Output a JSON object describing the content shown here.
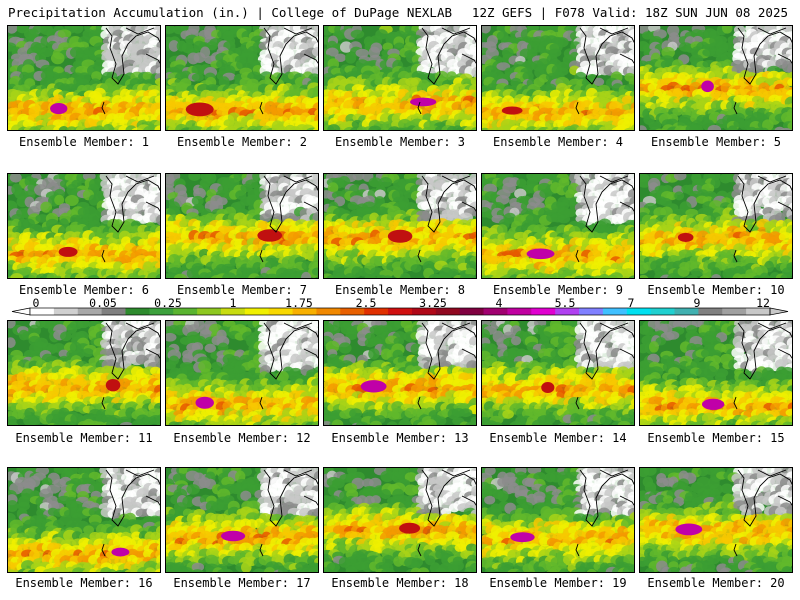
{
  "header": {
    "title": "Precipitation Accumulation (in.) | College of DuPage NEXLAB",
    "run_info": "12Z GEFS | F078 Valid: 18Z SUN JUN 08 2025"
  },
  "panels": [
    {
      "label": "Ensemble Member: 1",
      "seed": 11
    },
    {
      "label": "Ensemble Member: 2",
      "seed": 23
    },
    {
      "label": "Ensemble Member: 3",
      "seed": 37
    },
    {
      "label": "Ensemble Member: 4",
      "seed": 41
    },
    {
      "label": "Ensemble Member: 5",
      "seed": 53
    },
    {
      "label": "Ensemble Member: 6",
      "seed": 67
    },
    {
      "label": "Ensemble Member: 7",
      "seed": 71
    },
    {
      "label": "Ensemble Member: 8",
      "seed": 83
    },
    {
      "label": "Ensemble Member: 9",
      "seed": 97
    },
    {
      "label": "Ensemble Member: 10",
      "seed": 101
    },
    {
      "label": "Ensemble Member: 11",
      "seed": 113
    },
    {
      "label": "Ensemble Member: 12",
      "seed": 127
    },
    {
      "label": "Ensemble Member: 13",
      "seed": 131
    },
    {
      "label": "Ensemble Member: 14",
      "seed": 149
    },
    {
      "label": "Ensemble Member: 15",
      "seed": 151
    },
    {
      "label": "Ensemble Member: 16",
      "seed": 163
    },
    {
      "label": "Ensemble Member: 17",
      "seed": 173
    },
    {
      "label": "Ensemble Member: 18",
      "seed": 181
    },
    {
      "label": "Ensemble Member: 19",
      "seed": 191
    },
    {
      "label": "Ensemble Member: 20",
      "seed": 199
    }
  ],
  "colorbar": {
    "ticks": [
      "0",
      "0.05",
      "0.25",
      "1",
      "1.75",
      "2.5",
      "3.25",
      "4",
      "5.5",
      "7",
      "9",
      "12"
    ],
    "colors": [
      "#ffffff",
      "#d0d0d0",
      "#a8a8a8",
      "#808080",
      "#2e8b2e",
      "#3ca03c",
      "#5ab430",
      "#8ec820",
      "#c8dc10",
      "#f0f000",
      "#f8d800",
      "#f8b000",
      "#f08800",
      "#e86000",
      "#e03000",
      "#d01010",
      "#b00818",
      "#900820",
      "#800040",
      "#a00070",
      "#c000a0",
      "#e000d0",
      "#b040f0",
      "#8080ff",
      "#40c0ff",
      "#00e0f0",
      "#20d0d0",
      "#40b0b0",
      "#808080",
      "#a0a0a0",
      "#c8c8c8"
    ]
  }
}
